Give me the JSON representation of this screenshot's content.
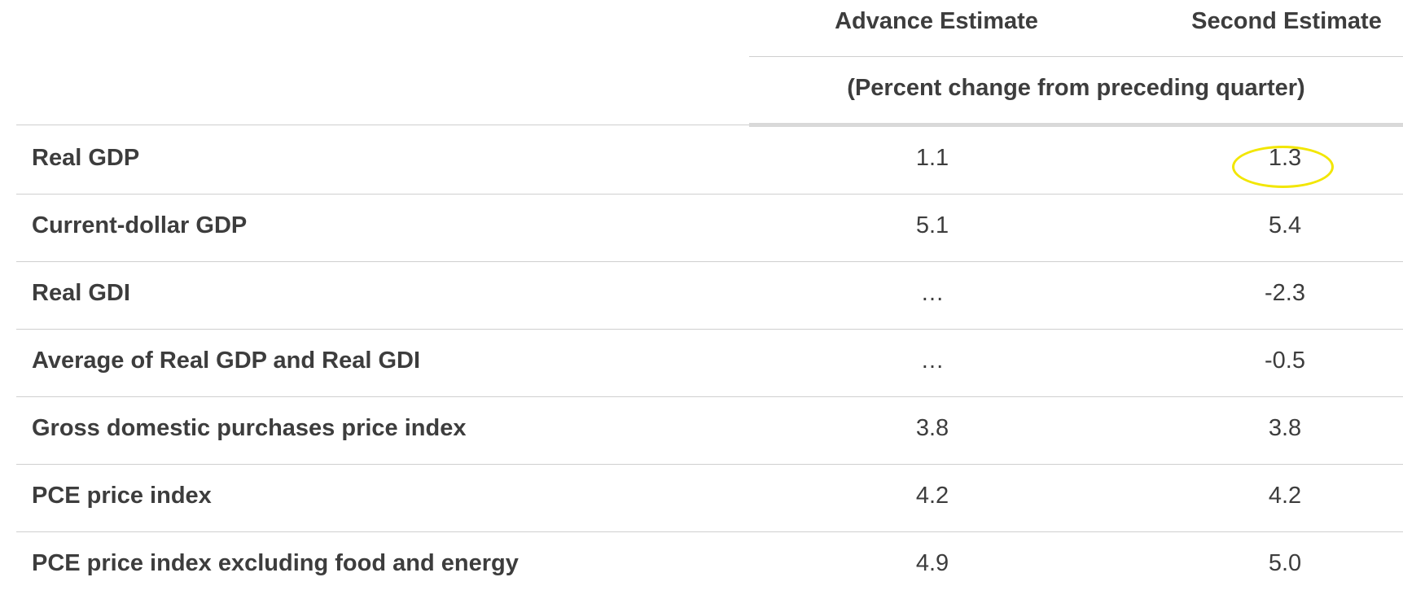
{
  "table": {
    "columns": {
      "advance": "Advance Estimate",
      "second": "Second Estimate"
    },
    "subheader": "(Percent change from preceding quarter)",
    "rows": [
      {
        "label": "Real GDP",
        "advance": "1.1",
        "second": "1.3"
      },
      {
        "label": "Current-dollar GDP",
        "advance": "5.1",
        "second": "5.4"
      },
      {
        "label": "Real GDI",
        "advance": "…",
        "second": "-2.3"
      },
      {
        "label": "Average of Real GDP and Real GDI",
        "advance": "…",
        "second": "-0.5"
      },
      {
        "label": "Gross domestic purchases price index",
        "advance": "3.8",
        "second": "3.8"
      },
      {
        "label": "PCE price index",
        "advance": "4.2",
        "second": "4.2"
      },
      {
        "label": "PCE price index excluding food and energy",
        "advance": "4.9",
        "second": "5.0"
      }
    ]
  },
  "annotation": {
    "highlighted_cell": "Real GDP — Second Estimate",
    "color": "#f2e600"
  }
}
